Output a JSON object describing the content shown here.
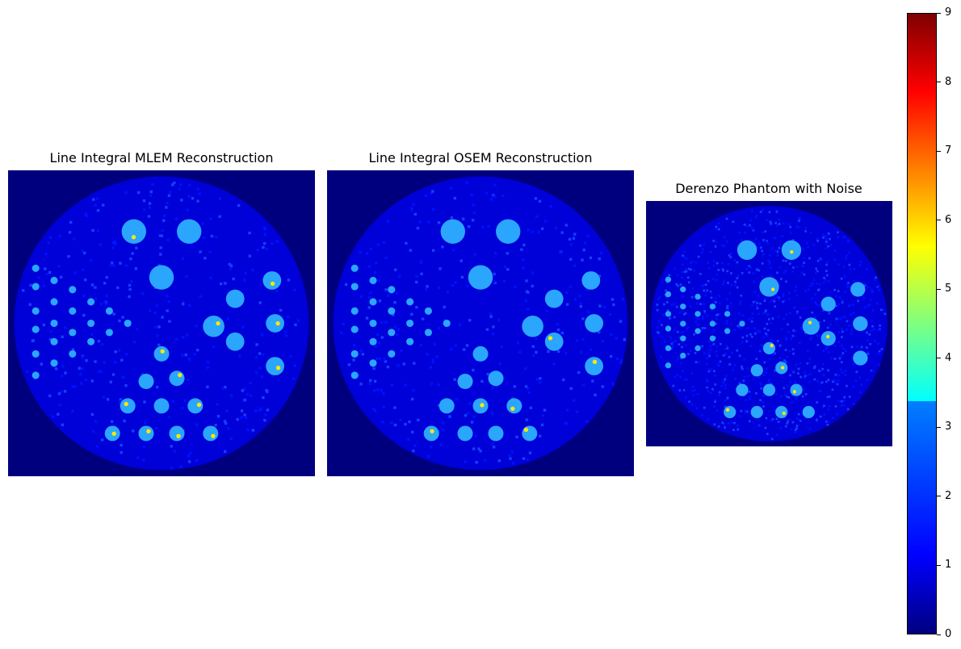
{
  "panels": [
    {
      "title": "Line Integral MLEM Reconstruction"
    },
    {
      "title": "Line Integral OSEM Reconstruction"
    },
    {
      "title": "Derenzo Phantom with Noise"
    }
  ],
  "colorbar": {
    "colormap": "jet",
    "min": 0,
    "max": 9,
    "ticks": [
      "0",
      "1",
      "2",
      "3",
      "4",
      "5",
      "6",
      "7",
      "8",
      "9"
    ]
  },
  "colors": {
    "background": "#00007f",
    "disk": "#0000d8",
    "rod": "#2aa6ff",
    "hot": "#ffe800"
  }
}
